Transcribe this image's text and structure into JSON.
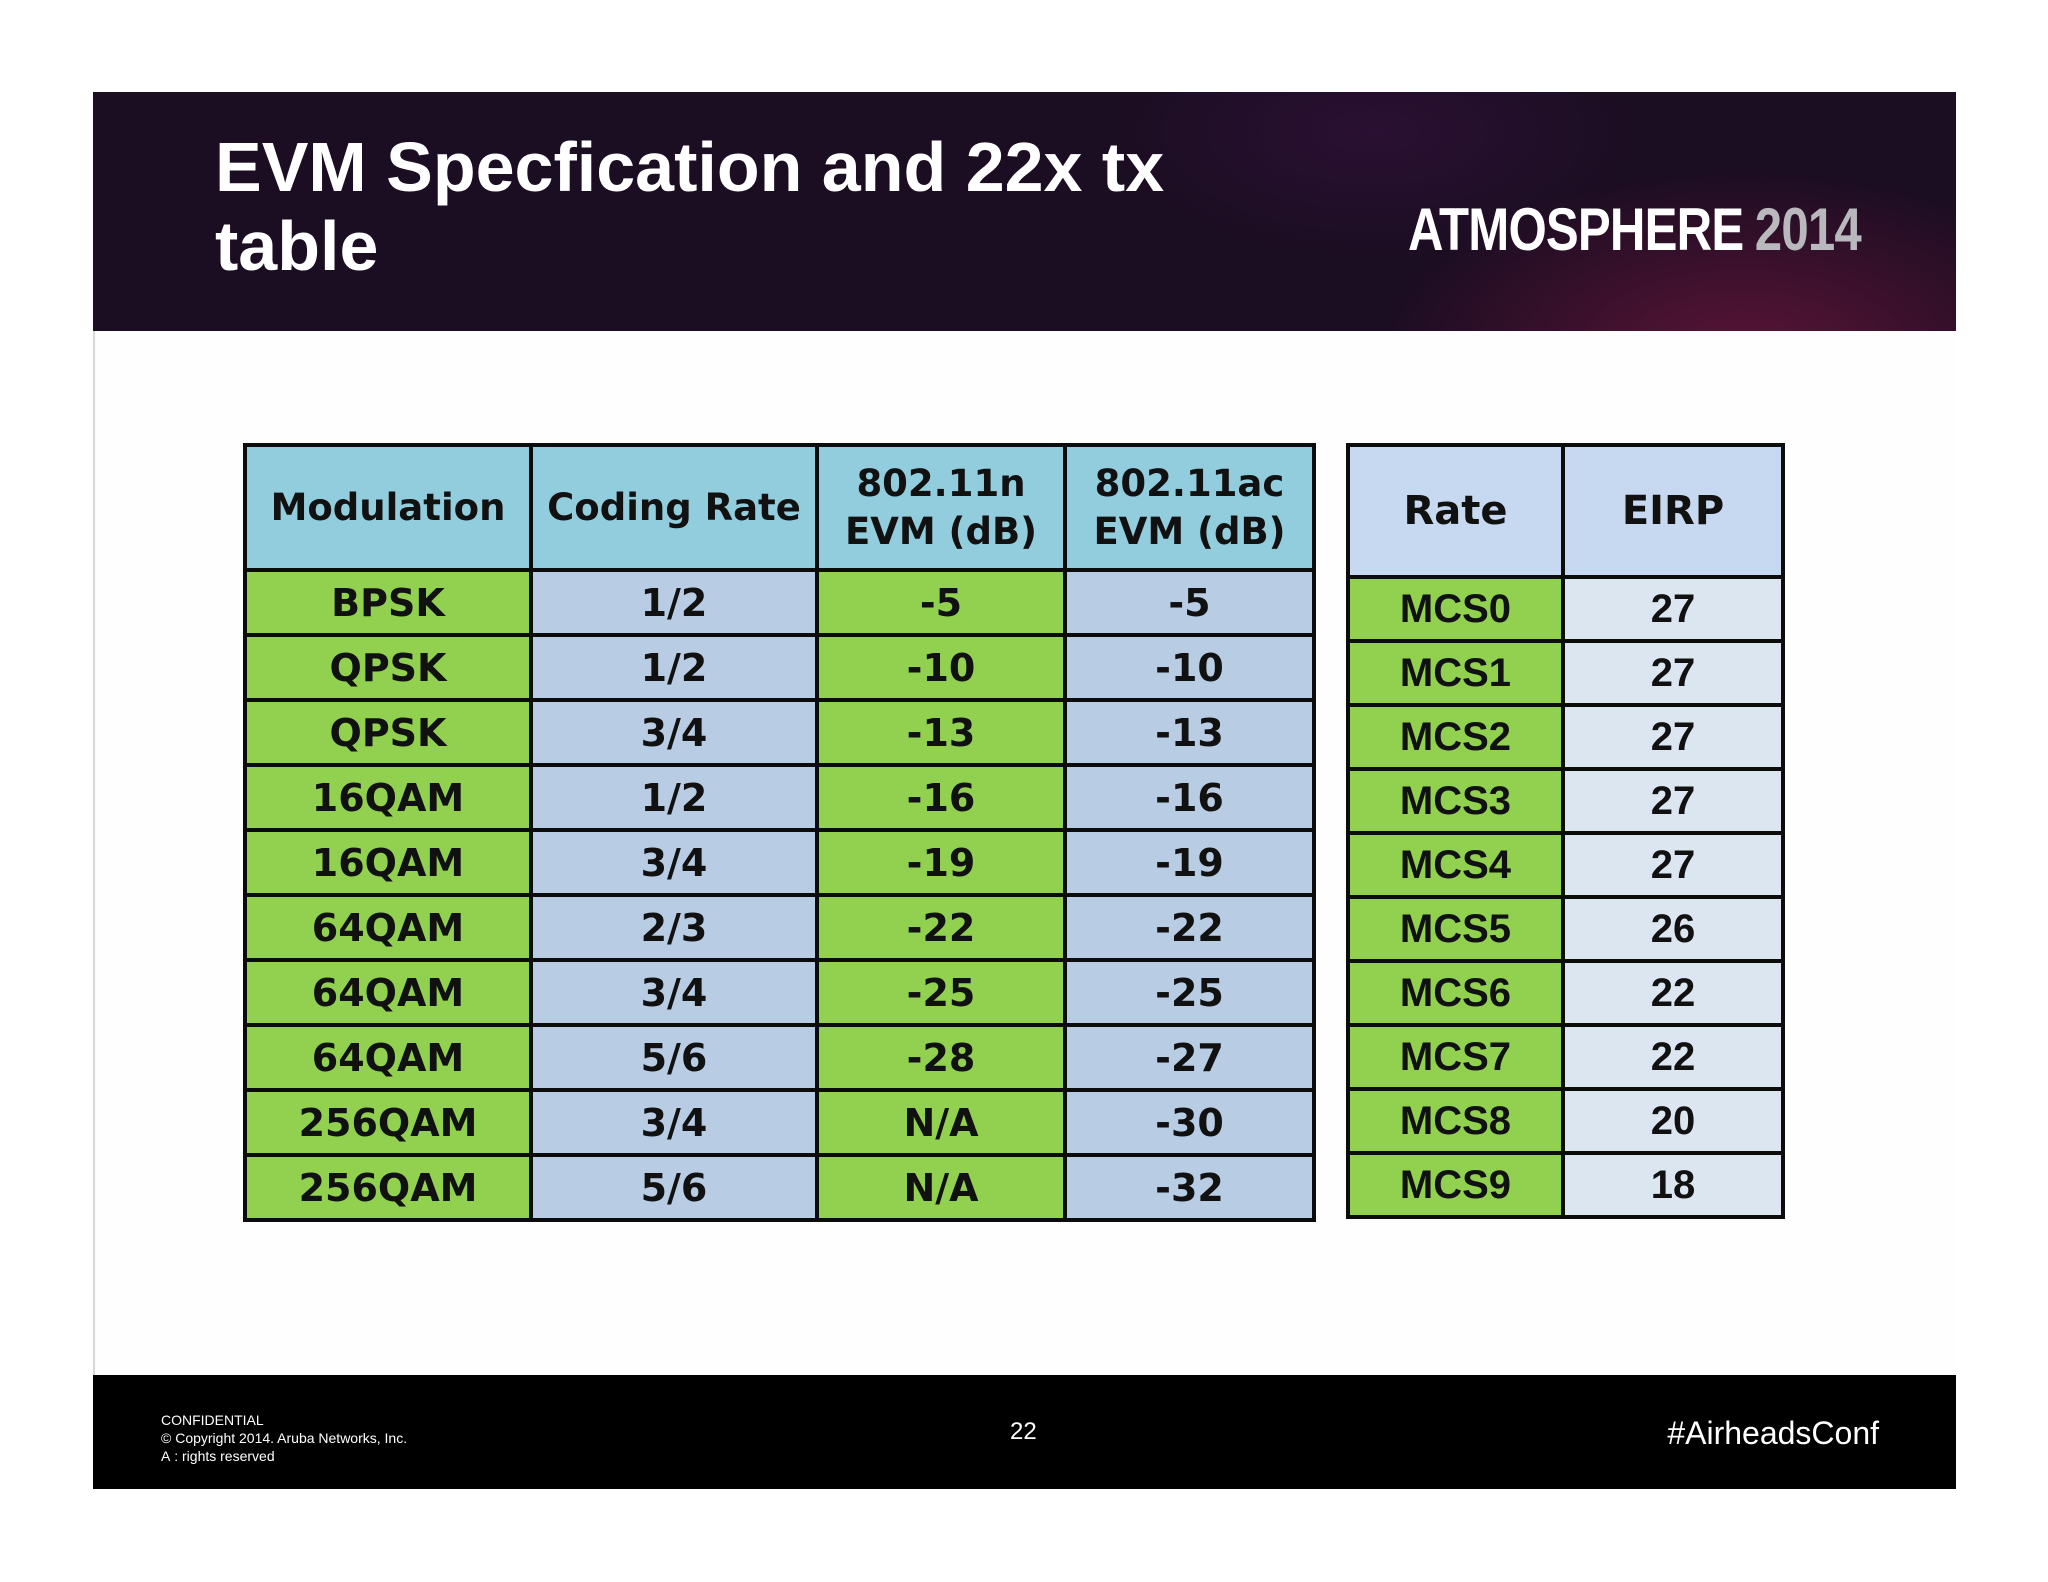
{
  "header": {
    "title": "EVM  Specfication and 22x tx\ntable",
    "brand_name": "ATMOSPHERE",
    "brand_year": "2014"
  },
  "evm_table": {
    "headers": {
      "modulation": "Modulation",
      "coding_rate": "Coding Rate",
      "evm_n": "802.11n EVM (dB)",
      "evm_ac": "802.11ac EVM (dB)"
    },
    "rows": [
      {
        "modulation": "BPSK",
        "coding_rate": "1/2",
        "evm_n": "-5",
        "evm_ac": "-5"
      },
      {
        "modulation": "QPSK",
        "coding_rate": "1/2",
        "evm_n": "-10",
        "evm_ac": "-10"
      },
      {
        "modulation": "QPSK",
        "coding_rate": "3/4",
        "evm_n": "-13",
        "evm_ac": "-13"
      },
      {
        "modulation": "16QAM",
        "coding_rate": "1/2",
        "evm_n": "-16",
        "evm_ac": "-16"
      },
      {
        "modulation": "16QAM",
        "coding_rate": "3/4",
        "evm_n": "-19",
        "evm_ac": "-19"
      },
      {
        "modulation": "64QAM",
        "coding_rate": "2/3",
        "evm_n": "-22",
        "evm_ac": "-22"
      },
      {
        "modulation": "64QAM",
        "coding_rate": "3/4",
        "evm_n": "-25",
        "evm_ac": "-25"
      },
      {
        "modulation": "64QAM",
        "coding_rate": "5/6",
        "evm_n": "-28",
        "evm_ac": "-27"
      },
      {
        "modulation": "256QAM",
        "coding_rate": "3/4",
        "evm_n": "N/A",
        "evm_ac": "-30"
      },
      {
        "modulation": "256QAM",
        "coding_rate": "5/6",
        "evm_n": "N/A",
        "evm_ac": "-32"
      }
    ]
  },
  "eirp_table": {
    "headers": {
      "rate": "Rate",
      "eirp": "EIRP"
    },
    "rows": [
      {
        "rate": "MCS0",
        "eirp": "27"
      },
      {
        "rate": "MCS1",
        "eirp": "27"
      },
      {
        "rate": "MCS2",
        "eirp": "27"
      },
      {
        "rate": "MCS3",
        "eirp": "27"
      },
      {
        "rate": "MCS4",
        "eirp": "27"
      },
      {
        "rate": "MCS5",
        "eirp": "26"
      },
      {
        "rate": "MCS6",
        "eirp": "22"
      },
      {
        "rate": "MCS7",
        "eirp": "22"
      },
      {
        "rate": "MCS8",
        "eirp": "20"
      },
      {
        "rate": "MCS9",
        "eirp": "18"
      }
    ]
  },
  "footer": {
    "confidential": "CONFIDENTIAL",
    "copyright": "© Copyright 2014. Aruba Networks, Inc.",
    "rights": "A : rights reserved",
    "page_number": "22",
    "hashtag": "#AirheadsConf"
  },
  "colors": {
    "header_background": "#1b0d22",
    "header_accent": "#8c1946",
    "table_header_teal": "#92cddd",
    "table_header_light_blue": "#c6d9f0",
    "cell_green": "#92d050",
    "cell_blue": "#b8cce4",
    "cell_light_blue": "#dce6f1",
    "footer_background": "#000000"
  }
}
